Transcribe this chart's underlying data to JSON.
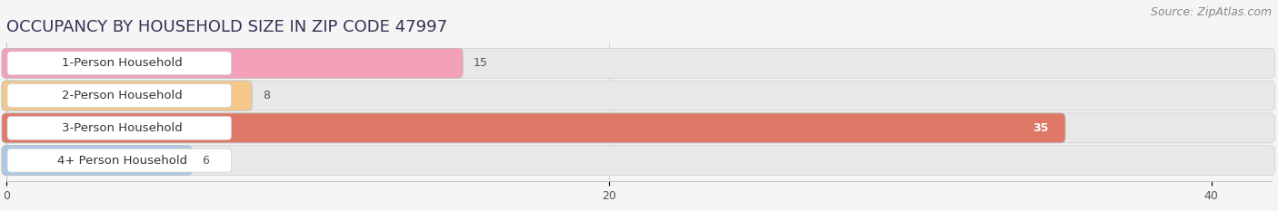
{
  "title": "OCCUPANCY BY HOUSEHOLD SIZE IN ZIP CODE 47997",
  "source": "Source: ZipAtlas.com",
  "categories": [
    "1-Person Household",
    "2-Person Household",
    "3-Person Household",
    "4+ Person Household"
  ],
  "values": [
    15,
    8,
    35,
    6
  ],
  "bar_colors": [
    "#f4a0b8",
    "#f5c98a",
    "#e07868",
    "#aec8e8"
  ],
  "bar_bg_color": "#e8e8e8",
  "bar_edge_color": "#cccccc",
  "xlim": [
    0,
    42
  ],
  "xticks": [
    0,
    20,
    40
  ],
  "background_color": "#f5f5f5",
  "bar_height": 0.62,
  "title_fontsize": 13,
  "source_fontsize": 9,
  "label_fontsize": 9.5,
  "value_fontsize": 9
}
